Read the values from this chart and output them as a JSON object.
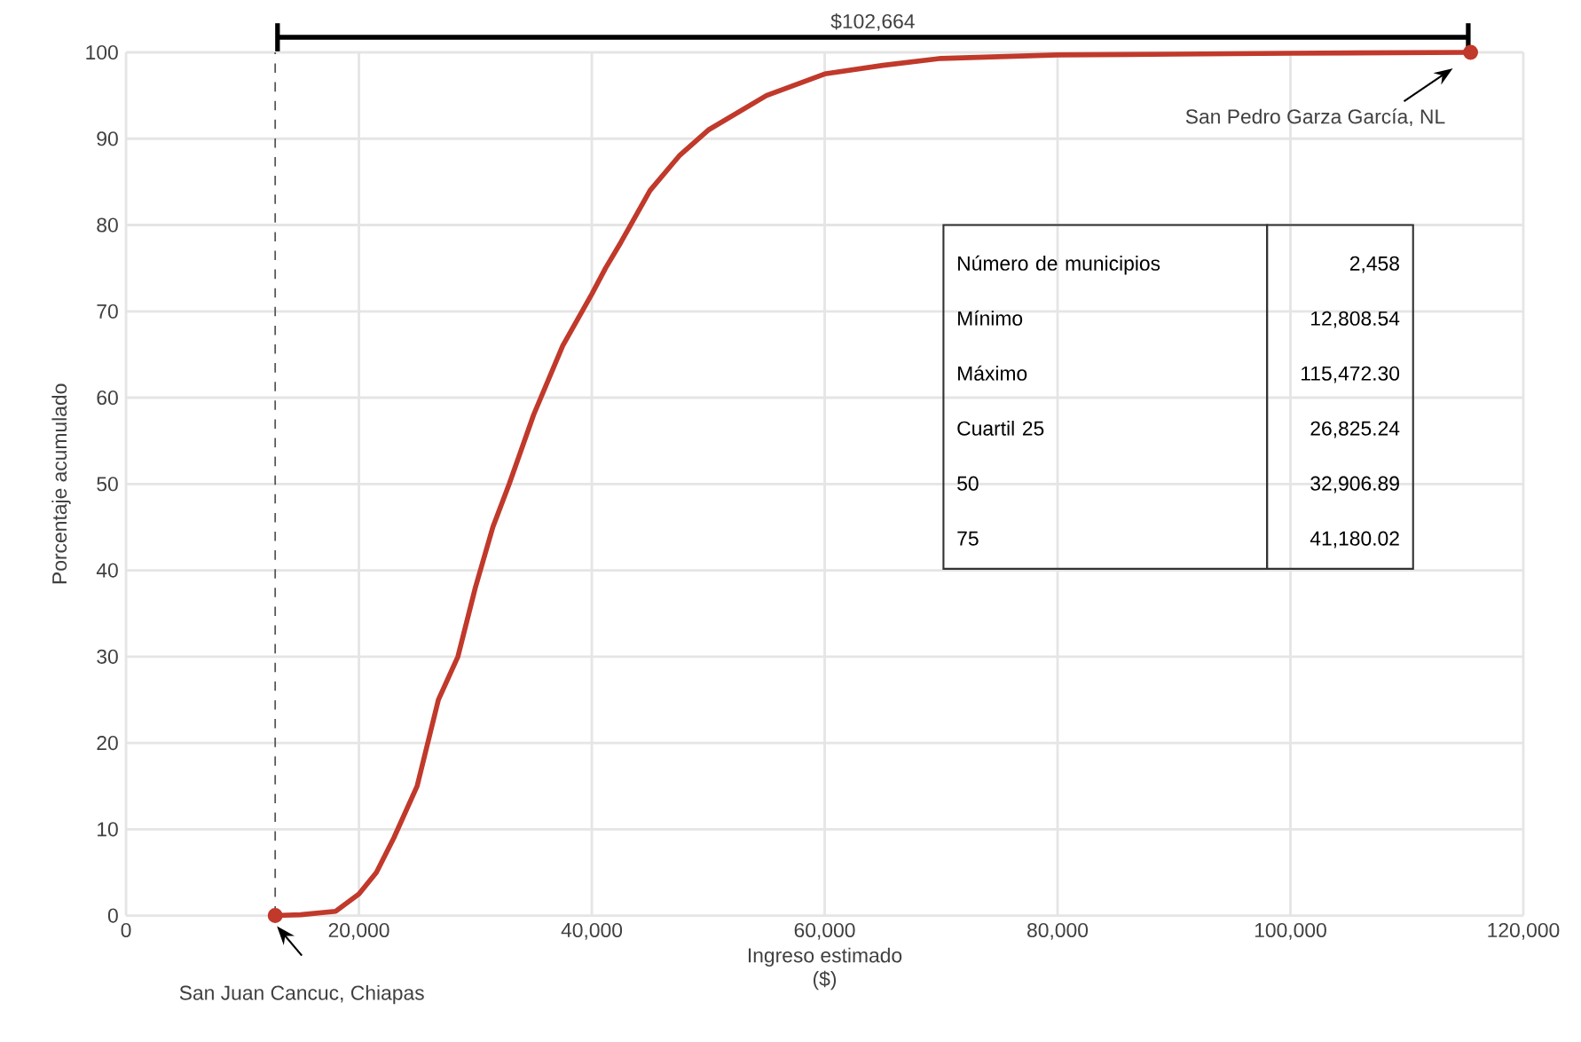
{
  "chart_data": {
    "type": "line",
    "xlabel": "Ingreso estimado\n($)",
    "ylabel": "Porcentaje acumulado",
    "series": [
      {
        "color": "#c0392b",
        "x": [
          12808.54,
          15000,
          18000,
          20000,
          21500,
          23000,
          25000,
          26825.24,
          28500,
          30000,
          31500,
          32906.89,
          35000,
          37500,
          40000,
          41180.02,
          42500,
          45000,
          47500,
          50000,
          55000,
          60000,
          65000,
          70000,
          80000,
          90000,
          100000,
          115472.3
        ],
        "values": [
          0,
          0.1,
          0.5,
          2.5,
          5,
          9,
          15,
          25,
          30,
          38,
          45,
          50,
          58,
          66,
          72,
          75,
          78,
          84,
          88,
          91,
          95,
          97.5,
          98.5,
          99.3,
          99.7,
          99.8,
          99.9,
          100
        ]
      },
      {
        "type": "scatter",
        "color": "#c0392b",
        "x": [
          12808.54,
          115472.3
        ],
        "values": [
          0,
          100
        ]
      }
    ],
    "xlim": [
      0,
      120000
    ],
    "ylim": [
      0,
      100
    ],
    "xticks": [
      {
        "value": 0,
        "label": "0"
      },
      {
        "value": 20000,
        "label": "20,000"
      },
      {
        "value": 40000,
        "label": "40,000"
      },
      {
        "value": 60000,
        "label": "60,000"
      },
      {
        "value": 80000,
        "label": "80,000"
      },
      {
        "value": 100000,
        "label": "100,000"
      },
      {
        "value": 120000,
        "label": "120,000"
      }
    ],
    "yticks": [
      0,
      10,
      20,
      30,
      40,
      50,
      60,
      70,
      80,
      90,
      100
    ],
    "grid": true,
    "line_style": "solid",
    "ref_lines": [
      {
        "axis": "x",
        "value": 12808.54,
        "line_style": "dashed",
        "color": "#555555"
      }
    ],
    "annotations": [
      "$102,664",
      "San Pedro Garza García, NL",
      "San Juan Cancuc, Chiapas",
      "Número de municipios",
      "2,458",
      "Mínimo",
      "12,808.54",
      "Máximo",
      "115,472.30",
      "Cuartil  25",
      "26,825.24",
      "50",
      "32,906.89",
      "75",
      "41,180.02"
    ]
  }
}
